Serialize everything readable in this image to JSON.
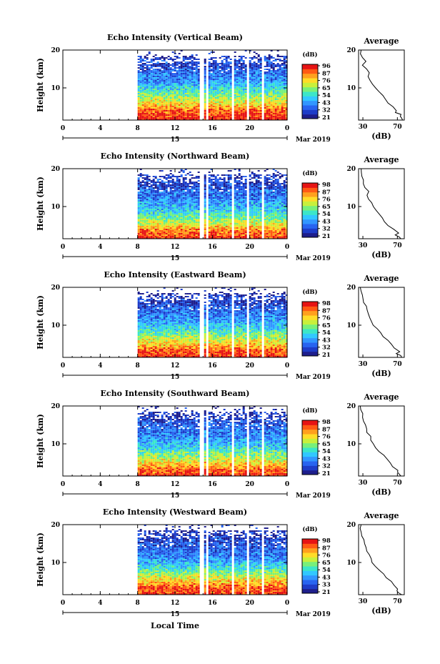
{
  "colors": {
    "cmap": [
      "#1e1e8c",
      "#1e3cc8",
      "#2864f0",
      "#3296ff",
      "#32c8ff",
      "#3ce6c8",
      "#78f07a",
      "#c8f03c",
      "#ffdc28",
      "#ffa01e",
      "#ff5a14",
      "#e61414"
    ],
    "gap": "#ffffff",
    "axis": "#000000"
  },
  "footer": {
    "xlabel": "Local Time"
  },
  "chart_data": [
    {
      "type": "heatmap",
      "title": "Echo Intensity (Vertical Beam)",
      "ylabel": "Height (km)",
      "xlim": [
        0,
        24
      ],
      "ylim": [
        1.5,
        20
      ],
      "xticks": [
        "0",
        "4",
        "8",
        "12",
        "16",
        "20",
        "0"
      ],
      "yticks": [
        "10",
        "20"
      ],
      "date_tick": "15",
      "date_label": "Mar 2019",
      "data_start_hour": 8,
      "gaps_hours": [
        [
          14.7,
          15.0
        ],
        [
          15.4,
          15.6
        ],
        [
          18.0,
          18.4
        ],
        [
          19.7,
          20.0
        ],
        [
          21.3,
          21.6
        ]
      ],
      "colorbar": {
        "unit": "(dB)",
        "ticks": [
          "96",
          "87",
          "76",
          "65",
          "54",
          "43",
          "32",
          "21"
        ]
      },
      "average": {
        "title": "Average",
        "xlabel": "(dB)",
        "xticks": [
          "30",
          "70"
        ],
        "xlim": [
          25,
          78
        ],
        "heights": [
          1.5,
          2,
          2.5,
          3,
          3.5,
          4,
          5,
          6,
          7,
          8,
          9,
          10,
          11,
          12,
          13,
          14,
          15,
          16,
          17,
          18,
          19,
          20
        ],
        "values": [
          76,
          74,
          72,
          73,
          69,
          70,
          64,
          60,
          56,
          52,
          48,
          45,
          42,
          38,
          37,
          36,
          33,
          30,
          33,
          29,
          28,
          28
        ]
      }
    },
    {
      "type": "heatmap",
      "title": "Echo Intensity (Northward Beam)",
      "ylabel": "Height (km)",
      "xlim": [
        0,
        24
      ],
      "ylim": [
        1.5,
        20
      ],
      "xticks": [
        "0",
        "4",
        "8",
        "12",
        "16",
        "20",
        "0"
      ],
      "yticks": [
        "10",
        "20"
      ],
      "date_tick": "15",
      "date_label": "Mar 2019",
      "data_start_hour": 8,
      "gaps_hours": [
        [
          14.7,
          15.0
        ],
        [
          15.4,
          15.6
        ],
        [
          18.0,
          18.4
        ],
        [
          19.7,
          20.0
        ],
        [
          21.3,
          21.6
        ]
      ],
      "colorbar": {
        "unit": "(dB)",
        "ticks": [
          "98",
          "87",
          "76",
          "65",
          "54",
          "43",
          "32",
          "21"
        ]
      },
      "average": {
        "title": "Average",
        "xlabel": "(dB)",
        "xticks": [
          "30",
          "70"
        ],
        "xlim": [
          25,
          78
        ],
        "heights": [
          1.5,
          2,
          2.5,
          3,
          4,
          5,
          6,
          7,
          8,
          9,
          10,
          11,
          12,
          13,
          14,
          15,
          16,
          17,
          18,
          19,
          20
        ],
        "values": [
          74,
          72,
          68,
          70,
          66,
          60,
          56,
          52,
          48,
          44,
          42,
          40,
          37,
          35,
          36,
          32,
          30,
          32,
          29,
          28,
          28
        ]
      }
    },
    {
      "type": "heatmap",
      "title": "Echo Intensity (Eastward Beam)",
      "ylabel": "Height (km)",
      "xlim": [
        0,
        24
      ],
      "ylim": [
        1.5,
        20
      ],
      "xticks": [
        "0",
        "4",
        "8",
        "12",
        "16",
        "20",
        "0"
      ],
      "yticks": [
        "10",
        "20"
      ],
      "date_tick": "15",
      "date_label": "Mar 2019",
      "data_start_hour": 8,
      "gaps_hours": [
        [
          14.7,
          15.0
        ],
        [
          15.4,
          15.6
        ],
        [
          18.0,
          18.4
        ],
        [
          19.7,
          20.0
        ],
        [
          21.3,
          21.6
        ]
      ],
      "colorbar": {
        "unit": "(dB)",
        "ticks": [
          "98",
          "87",
          "76",
          "65",
          "54",
          "43",
          "32",
          "21"
        ]
      },
      "average": {
        "title": "Average",
        "xlabel": "(dB)",
        "xticks": [
          "30",
          "70"
        ],
        "xlim": [
          25,
          78
        ],
        "heights": [
          1.5,
          2,
          2.5,
          3,
          4,
          5,
          6,
          7,
          8,
          9,
          10,
          11,
          12,
          13,
          14,
          15,
          16,
          17,
          18,
          19,
          20
        ],
        "values": [
          75,
          73,
          70,
          72,
          66,
          62,
          58,
          54,
          50,
          46,
          43,
          40,
          38,
          36,
          35,
          33,
          30,
          31,
          28,
          27,
          27
        ]
      }
    },
    {
      "type": "heatmap",
      "title": "Echo Intensity (Southward Beam)",
      "ylabel": "Height (km)",
      "xlim": [
        0,
        24
      ],
      "ylim": [
        1.5,
        20
      ],
      "xticks": [
        "0",
        "4",
        "8",
        "12",
        "16",
        "20",
        "0"
      ],
      "yticks": [
        "10",
        "20"
      ],
      "date_tick": "15",
      "date_label": "Mar 2019",
      "data_start_hour": 8,
      "gaps_hours": [
        [
          14.7,
          15.0
        ],
        [
          15.4,
          15.6
        ],
        [
          18.0,
          18.4
        ],
        [
          19.7,
          20.0
        ],
        [
          21.3,
          21.6
        ]
      ],
      "colorbar": {
        "unit": "(dB)",
        "ticks": [
          "98",
          "87",
          "76",
          "65",
          "54",
          "43",
          "32",
          "21"
        ]
      },
      "average": {
        "title": "Average",
        "xlabel": "(dB)",
        "xticks": [
          "30",
          "70"
        ],
        "xlim": [
          25,
          78
        ],
        "heights": [
          1.5,
          2,
          2.5,
          3,
          4,
          5,
          6,
          7,
          8,
          9,
          10,
          11,
          12,
          13,
          14,
          15,
          16,
          17,
          18,
          19,
          20
        ],
        "values": [
          74,
          73,
          69,
          71,
          65,
          61,
          57,
          53,
          49,
          45,
          42,
          40,
          38,
          36,
          35,
          34,
          32,
          30,
          29,
          28,
          27
        ]
      }
    },
    {
      "type": "heatmap",
      "title": "Echo Intensity (Westward Beam)",
      "ylabel": "Height (km)",
      "xlim": [
        0,
        24
      ],
      "ylim": [
        1.5,
        20
      ],
      "xticks": [
        "0",
        "4",
        "8",
        "12",
        "16",
        "20",
        "0"
      ],
      "yticks": [
        "10",
        "20"
      ],
      "date_tick": "15",
      "date_label": "Mar 2019",
      "data_start_hour": 8,
      "gaps_hours": [
        [
          14.7,
          15.0
        ],
        [
          15.4,
          15.6
        ],
        [
          18.0,
          18.4
        ],
        [
          19.7,
          20.0
        ],
        [
          21.3,
          21.6
        ]
      ],
      "colorbar": {
        "unit": "(dB)",
        "ticks": [
          "98",
          "87",
          "76",
          "65",
          "54",
          "43",
          "33",
          "21"
        ]
      },
      "average": {
        "title": "Average",
        "xlabel": "(dB)",
        "xticks": [
          "30",
          "70"
        ],
        "xlim": [
          25,
          78
        ],
        "heights": [
          1.5,
          2,
          2.5,
          3,
          4,
          5,
          6,
          7,
          8,
          9,
          10,
          11,
          12,
          13,
          14,
          15,
          16,
          17,
          18,
          19,
          20
        ],
        "values": [
          75,
          72,
          70,
          71,
          67,
          62,
          58,
          53,
          49,
          45,
          42,
          39,
          37,
          35,
          34,
          33,
          31,
          30,
          29,
          28,
          28
        ]
      }
    }
  ]
}
